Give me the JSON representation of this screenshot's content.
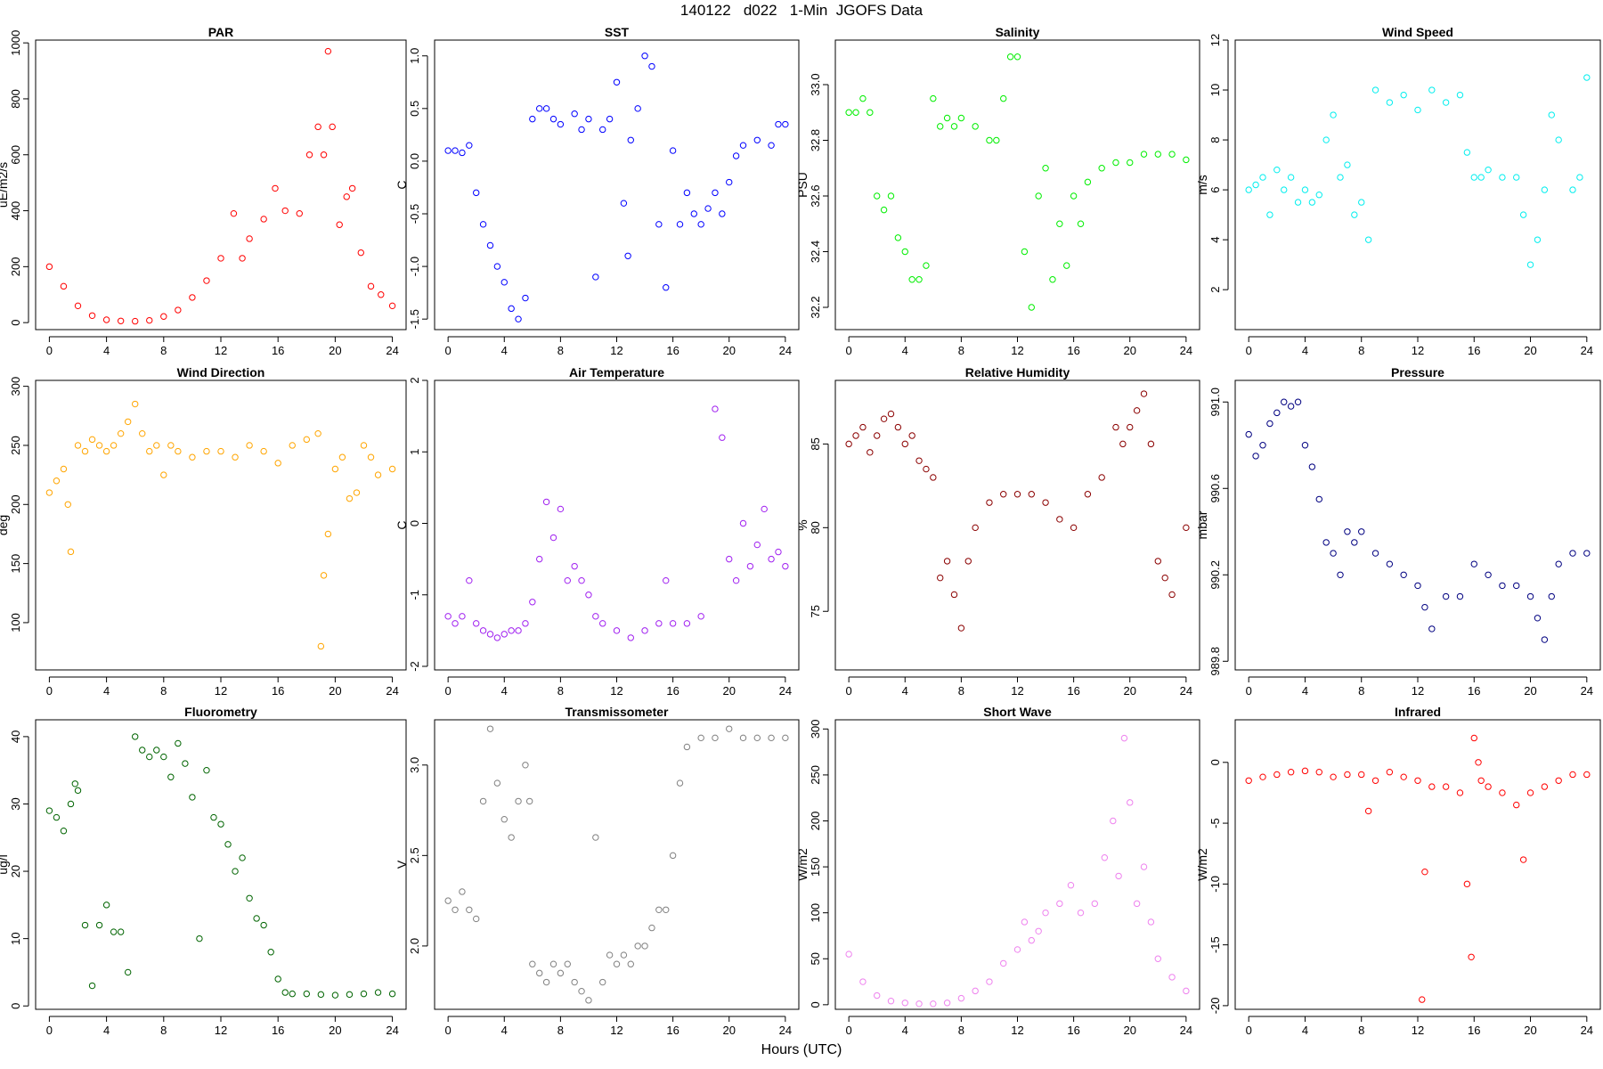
{
  "page": {
    "title": "140122   d022   1-Min  JGOFS Data",
    "xlabel": "Hours (UTC)"
  },
  "chart_data": [
    {
      "type": "scatter",
      "title": "PAR",
      "ylabel": "uE/m2/s",
      "color": "#ff0000",
      "xlim": [
        -0.96,
        24.96
      ],
      "ylim": [
        -25,
        1010
      ],
      "xticks": [
        0,
        4,
        8,
        12,
        16,
        20,
        24
      ],
      "yticks": [
        0,
        200,
        400,
        600,
        800,
        1000
      ],
      "ytick_labels": [
        "0",
        "200",
        "400",
        "600",
        "800",
        "1000"
      ],
      "x": [
        0,
        1,
        2,
        3,
        4,
        5,
        6,
        7,
        8,
        9,
        10,
        11,
        12,
        12.9,
        13.5,
        14,
        15,
        15.8,
        16.5,
        17.5,
        18.2,
        18.8,
        19.2,
        19.5,
        19.8,
        20.3,
        20.8,
        21.2,
        21.8,
        22.5,
        23.2,
        24
      ],
      "y": [
        200,
        130,
        60,
        25,
        10,
        6,
        5,
        8,
        22,
        45,
        90,
        150,
        230,
        390,
        230,
        300,
        370,
        480,
        400,
        390,
        600,
        700,
        600,
        970,
        700,
        350,
        450,
        480,
        250,
        130,
        100,
        60
      ]
    },
    {
      "type": "scatter",
      "title": "SST",
      "ylabel": "C",
      "color": "#0000ff",
      "xlim": [
        -0.96,
        24.96
      ],
      "ylim": [
        -1.6,
        1.15
      ],
      "xticks": [
        0,
        4,
        8,
        12,
        16,
        20,
        24
      ],
      "yticks": [
        -1.5,
        -1.0,
        -0.5,
        0.0,
        0.5,
        1.0
      ],
      "ytick_labels": [
        "-1.5",
        "-1.0",
        "-0.5",
        "0.0",
        "0.5",
        "1.0"
      ],
      "x": [
        0,
        0.5,
        1,
        1.5,
        2,
        2.5,
        3,
        3.5,
        4,
        4.5,
        5,
        5.5,
        6,
        6.5,
        7,
        7.5,
        8,
        9,
        9.5,
        10,
        10.5,
        11,
        11.5,
        12,
        12.5,
        12.8,
        13,
        13.5,
        14,
        14.5,
        15,
        15.5,
        16,
        16.5,
        17,
        17.5,
        18,
        18.5,
        19,
        19.5,
        20,
        20.5,
        21,
        22,
        23,
        23.5,
        24
      ],
      "y": [
        0.1,
        0.1,
        0.08,
        0.15,
        -0.3,
        -0.6,
        -0.8,
        -1.0,
        -1.15,
        -1.4,
        -1.5,
        -1.3,
        0.4,
        0.5,
        0.5,
        0.4,
        0.35,
        0.45,
        0.3,
        0.4,
        -1.1,
        0.3,
        0.4,
        0.75,
        -0.4,
        -0.9,
        0.2,
        0.5,
        1.0,
        0.9,
        -0.6,
        -1.2,
        0.1,
        -0.6,
        -0.3,
        -0.5,
        -0.6,
        -0.45,
        -0.3,
        -0.5,
        -0.2,
        0.05,
        0.15,
        0.2,
        0.15,
        0.35,
        0.35
      ]
    },
    {
      "type": "scatter",
      "title": "Salinity",
      "ylabel": "PSU",
      "color": "#00ee00",
      "xlim": [
        -0.96,
        24.96
      ],
      "ylim": [
        32.12,
        33.16
      ],
      "xticks": [
        0,
        4,
        8,
        12,
        16,
        20,
        24
      ],
      "yticks": [
        32.2,
        32.4,
        32.6,
        32.8,
        33.0
      ],
      "ytick_labels": [
        "32.2",
        "32.4",
        "32.6",
        "32.8",
        "33.0"
      ],
      "x": [
        0,
        0.5,
        1,
        1.5,
        2,
        2.5,
        3,
        3.5,
        4,
        4.5,
        5,
        5.5,
        6,
        6.5,
        7,
        7.5,
        8,
        9,
        10,
        10.5,
        11,
        11.5,
        12,
        12.5,
        13,
        13.5,
        14,
        14.5,
        15,
        15.5,
        16,
        16.5,
        17,
        18,
        19,
        20,
        21,
        22,
        23,
        24
      ],
      "y": [
        32.9,
        32.9,
        32.95,
        32.9,
        32.6,
        32.55,
        32.6,
        32.45,
        32.4,
        32.3,
        32.3,
        32.35,
        32.95,
        32.85,
        32.88,
        32.85,
        32.88,
        32.85,
        32.8,
        32.8,
        32.95,
        33.1,
        33.1,
        32.4,
        32.2,
        32.6,
        32.7,
        32.3,
        32.5,
        32.35,
        32.6,
        32.5,
        32.65,
        32.7,
        32.72,
        32.72,
        32.75,
        32.75,
        32.75,
        32.73
      ]
    },
    {
      "type": "scatter",
      "title": "Wind Speed",
      "ylabel": "m/s",
      "color": "#00eeee",
      "xlim": [
        -0.96,
        24.96
      ],
      "ylim": [
        0.4,
        12
      ],
      "xticks": [
        0,
        4,
        8,
        12,
        16,
        20,
        24
      ],
      "yticks": [
        2,
        4,
        6,
        8,
        10,
        12
      ],
      "ytick_labels": [
        "2",
        "4",
        "6",
        "8",
        "10",
        "12"
      ],
      "x": [
        0,
        0.5,
        1,
        1.5,
        2,
        2.5,
        3,
        3.5,
        4,
        4.5,
        5,
        5.5,
        6,
        6.5,
        7,
        7.5,
        8,
        8.5,
        9,
        10,
        11,
        12,
        13,
        14,
        15,
        15.5,
        16,
        16.5,
        17,
        18,
        19,
        19.5,
        20,
        20.5,
        21,
        21.5,
        22,
        23,
        23.5,
        24
      ],
      "y": [
        6,
        6.2,
        6.5,
        5,
        6.8,
        6,
        6.5,
        5.5,
        6,
        5.5,
        5.8,
        8,
        9,
        6.5,
        7,
        5,
        5.5,
        4,
        10,
        9.5,
        9.8,
        9.2,
        10,
        9.5,
        9.8,
        7.5,
        6.5,
        6.5,
        6.8,
        6.5,
        6.5,
        5,
        3,
        4,
        6,
        9,
        8,
        6,
        6.5,
        10.5
      ]
    },
    {
      "type": "scatter",
      "title": "Wind Direction",
      "ylabel": "deg",
      "color": "#ffa500",
      "xlim": [
        -0.96,
        24.96
      ],
      "ylim": [
        60,
        305
      ],
      "xticks": [
        0,
        4,
        8,
        12,
        16,
        20,
        24
      ],
      "yticks": [
        100,
        150,
        200,
        250,
        300
      ],
      "ytick_labels": [
        "100",
        "150",
        "200",
        "250",
        "300"
      ],
      "x": [
        0,
        0.5,
        1,
        1.3,
        1.5,
        2,
        2.5,
        3,
        3.5,
        4,
        4.5,
        5,
        5.5,
        6,
        6.5,
        7,
        7.5,
        8,
        8.5,
        9,
        10,
        11,
        12,
        13,
        14,
        15,
        16,
        17,
        18,
        18.8,
        19,
        19.2,
        19.5,
        20,
        20.5,
        21,
        21.5,
        22,
        22.5,
        23,
        24
      ],
      "y": [
        210,
        220,
        230,
        200,
        160,
        250,
        245,
        255,
        250,
        245,
        250,
        260,
        270,
        285,
        260,
        245,
        250,
        225,
        250,
        245,
        240,
        245,
        245,
        240,
        250,
        245,
        235,
        250,
        255,
        260,
        80,
        140,
        175,
        230,
        240,
        205,
        210,
        250,
        240,
        225,
        230
      ]
    },
    {
      "type": "scatter",
      "title": "Air Temperature",
      "ylabel": "C",
      "color": "#a020f0",
      "xlim": [
        -0.96,
        24.96
      ],
      "ylim": [
        -2.05,
        2.0
      ],
      "xticks": [
        0,
        4,
        8,
        12,
        16,
        20,
        24
      ],
      "yticks": [
        -2,
        -1,
        0,
        1,
        2
      ],
      "ytick_labels": [
        "-2",
        "-1",
        "0",
        "1",
        "2"
      ],
      "x": [
        0,
        0.5,
        1,
        1.5,
        2,
        2.5,
        3,
        3.5,
        4,
        4.5,
        5,
        5.5,
        6,
        6.5,
        7,
        7.5,
        8,
        8.5,
        9,
        9.5,
        10,
        10.5,
        11,
        12,
        13,
        14,
        15,
        15.5,
        16,
        17,
        18,
        19,
        19.5,
        20,
        20.5,
        21,
        21.5,
        22,
        22.5,
        23,
        23.5,
        24
      ],
      "y": [
        -1.3,
        -1.4,
        -1.3,
        -0.8,
        -1.4,
        -1.5,
        -1.55,
        -1.6,
        -1.55,
        -1.5,
        -1.5,
        -1.4,
        -1.1,
        -0.5,
        0.3,
        -0.2,
        0.2,
        -0.8,
        -0.6,
        -0.8,
        -1.0,
        -1.3,
        -1.4,
        -1.5,
        -1.6,
        -1.5,
        -1.4,
        -0.8,
        -1.4,
        -1.4,
        -1.3,
        1.6,
        1.2,
        -0.5,
        -0.8,
        0.0,
        -0.6,
        -0.3,
        0.2,
        -0.5,
        -0.4,
        -0.6
      ]
    },
    {
      "type": "scatter",
      "title": "Relative Humidity",
      "ylabel": "%",
      "color": "#8b0000",
      "xlim": [
        -0.96,
        24.96
      ],
      "ylim": [
        71.5,
        88.8
      ],
      "xticks": [
        0,
        4,
        8,
        12,
        16,
        20,
        24
      ],
      "yticks": [
        75,
        80,
        85
      ],
      "ytick_labels": [
        "75",
        "80",
        "85"
      ],
      "x": [
        0,
        0.5,
        1,
        1.5,
        2,
        2.5,
        3,
        3.5,
        4,
        4.5,
        5,
        5.5,
        6,
        6.5,
        7,
        7.5,
        8,
        8.5,
        9,
        10,
        11,
        12,
        13,
        14,
        15,
        16,
        17,
        18,
        19,
        19.5,
        20,
        20.5,
        21,
        21.5,
        22,
        22.5,
        23,
        24
      ],
      "y": [
        85,
        85.5,
        86,
        84.5,
        85.5,
        86.5,
        86.8,
        86,
        85,
        85.5,
        84,
        83.5,
        83,
        77,
        78,
        76,
        74,
        78,
        80,
        81.5,
        82,
        82,
        82,
        81.5,
        80.5,
        80,
        82,
        83,
        86,
        85,
        86,
        87,
        88,
        85,
        78,
        77,
        76,
        80
      ]
    },
    {
      "type": "scatter",
      "title": "Pressure",
      "ylabel": "mbar",
      "color": "#000080",
      "xlim": [
        -0.96,
        24.96
      ],
      "ylim": [
        989.76,
        991.1
      ],
      "xticks": [
        0,
        4,
        8,
        12,
        16,
        20,
        24
      ],
      "yticks": [
        989.8,
        990.2,
        990.6,
        991.0
      ],
      "ytick_labels": [
        "989.8",
        "990.2",
        "990.6",
        "991.0"
      ],
      "x": [
        0,
        0.5,
        1,
        1.5,
        2,
        2.5,
        3,
        3.5,
        4,
        4.5,
        5,
        5.5,
        6,
        6.5,
        7,
        7.5,
        8,
        9,
        10,
        11,
        12,
        12.5,
        13,
        14,
        15,
        16,
        17,
        18,
        19,
        20,
        20.5,
        21,
        21.5,
        22,
        23,
        24
      ],
      "y": [
        990.85,
        990.75,
        990.8,
        990.9,
        990.95,
        991.0,
        990.98,
        991.0,
        990.8,
        990.7,
        990.55,
        990.35,
        990.3,
        990.2,
        990.4,
        990.35,
        990.4,
        990.3,
        990.25,
        990.2,
        990.15,
        990.05,
        989.95,
        990.1,
        990.1,
        990.25,
        990.2,
        990.15,
        990.15,
        990.1,
        990.0,
        989.9,
        990.1,
        990.25,
        990.3,
        990.3
      ]
    },
    {
      "type": "scatter",
      "title": "Fluorometry",
      "ylabel": "ug/l",
      "color": "#006400",
      "xlim": [
        -0.96,
        24.96
      ],
      "ylim": [
        -0.5,
        42.5
      ],
      "xticks": [
        0,
        4,
        8,
        12,
        16,
        20,
        24
      ],
      "yticks": [
        0,
        10,
        20,
        30,
        40
      ],
      "ytick_labels": [
        "0",
        "10",
        "20",
        "30",
        "40"
      ],
      "x": [
        0,
        0.5,
        1,
        1.5,
        1.8,
        2,
        2.5,
        3,
        3.5,
        4,
        4.5,
        5,
        5.5,
        6,
        6.5,
        7,
        7.5,
        8,
        8.5,
        9,
        9.5,
        10,
        10.5,
        11,
        11.5,
        12,
        12.5,
        13,
        13.5,
        14,
        14.5,
        15,
        15.5,
        16,
        16.5,
        17,
        18,
        19,
        20,
        21,
        22,
        23,
        24
      ],
      "y": [
        29,
        28,
        26,
        30,
        33,
        32,
        12,
        3,
        12,
        15,
        11,
        11,
        5,
        40,
        38,
        37,
        38,
        37,
        34,
        39,
        36,
        31,
        10,
        35,
        28,
        27,
        24,
        20,
        22,
        16,
        13,
        12,
        8,
        4,
        2,
        1.8,
        1.8,
        1.7,
        1.6,
        1.7,
        1.8,
        2,
        1.8
      ]
    },
    {
      "type": "scatter",
      "title": "Transmissometer",
      "ylabel": "V",
      "color": "#808080",
      "xlim": [
        -0.96,
        24.96
      ],
      "ylim": [
        1.65,
        3.25
      ],
      "xticks": [
        0,
        4,
        8,
        12,
        16,
        20,
        24
      ],
      "yticks": [
        2.0,
        2.5,
        3.0
      ],
      "ytick_labels": [
        "2.0",
        "2.5",
        "3.0"
      ],
      "x": [
        0,
        0.5,
        1,
        1.5,
        2,
        2.5,
        3,
        3.5,
        4,
        4.5,
        5,
        5.5,
        5.8,
        6,
        6.5,
        7,
        7.5,
        8,
        8.5,
        9,
        9.5,
        10,
        10.5,
        11,
        11.5,
        12,
        12.5,
        13,
        13.5,
        14,
        14.5,
        15,
        15.5,
        16,
        16.5,
        17,
        18,
        19,
        20,
        21,
        22,
        23,
        24
      ],
      "y": [
        2.25,
        2.2,
        2.3,
        2.2,
        2.15,
        2.8,
        3.2,
        2.9,
        2.7,
        2.6,
        2.8,
        3.0,
        2.8,
        1.9,
        1.85,
        1.8,
        1.9,
        1.85,
        1.9,
        1.8,
        1.75,
        1.7,
        2.6,
        1.8,
        1.95,
        1.9,
        1.95,
        1.9,
        2.0,
        2.0,
        2.1,
        2.2,
        2.2,
        2.5,
        2.9,
        3.1,
        3.15,
        3.15,
        3.2,
        3.15,
        3.15,
        3.15,
        3.15
      ]
    },
    {
      "type": "scatter",
      "title": "Short Wave",
      "ylabel": "W/m2",
      "color": "#ee82ee",
      "xlim": [
        -0.96,
        24.96
      ],
      "ylim": [
        -5,
        310
      ],
      "xticks": [
        0,
        4,
        8,
        12,
        16,
        20,
        24
      ],
      "yticks": [
        0,
        50,
        100,
        150,
        200,
        250,
        300
      ],
      "ytick_labels": [
        "0",
        "50",
        "100",
        "150",
        "200",
        "250",
        "300"
      ],
      "x": [
        0,
        1,
        2,
        3,
        4,
        5,
        6,
        7,
        8,
        9,
        10,
        11,
        12,
        12.5,
        13,
        13.5,
        14,
        15,
        15.8,
        16.5,
        17.5,
        18.2,
        18.8,
        19.2,
        19.6,
        20,
        20.5,
        21,
        21.5,
        22,
        23,
        24
      ],
      "y": [
        55,
        25,
        10,
        4,
        2,
        1,
        1,
        2,
        7,
        15,
        25,
        45,
        60,
        90,
        70,
        80,
        100,
        110,
        130,
        100,
        110,
        160,
        200,
        140,
        290,
        220,
        110,
        150,
        90,
        50,
        30,
        15
      ]
    },
    {
      "type": "scatter",
      "title": "Infrared",
      "ylabel": "W/m2",
      "color": "#ff0000",
      "xlim": [
        -0.96,
        24.96
      ],
      "ylim": [
        -20.3,
        3.5
      ],
      "xticks": [
        0,
        4,
        8,
        12,
        16,
        20,
        24
      ],
      "yticks": [
        -20,
        -15,
        -10,
        -5,
        0
      ],
      "ytick_labels": [
        "-20",
        "-15",
        "-10",
        "-5",
        "0"
      ],
      "x": [
        0,
        1,
        2,
        3,
        4,
        5,
        6,
        7,
        8,
        8.5,
        9,
        10,
        11,
        12,
        12.3,
        12.5,
        13,
        14,
        15,
        15.5,
        15.8,
        16,
        16.3,
        16.5,
        17,
        18,
        19,
        19.5,
        20,
        21,
        22,
        23,
        24
      ],
      "y": [
        -1.5,
        -1.2,
        -1,
        -0.8,
        -0.7,
        -0.8,
        -1.2,
        -1,
        -1,
        -4,
        -1.5,
        -0.8,
        -1.2,
        -1.5,
        -19.5,
        -9,
        -2,
        -2,
        -2.5,
        -10,
        -16,
        2,
        0,
        -1.5,
        -2,
        -2.5,
        -3.5,
        -8,
        -2.5,
        -2,
        -1.5,
        -1,
        -1
      ]
    }
  ]
}
